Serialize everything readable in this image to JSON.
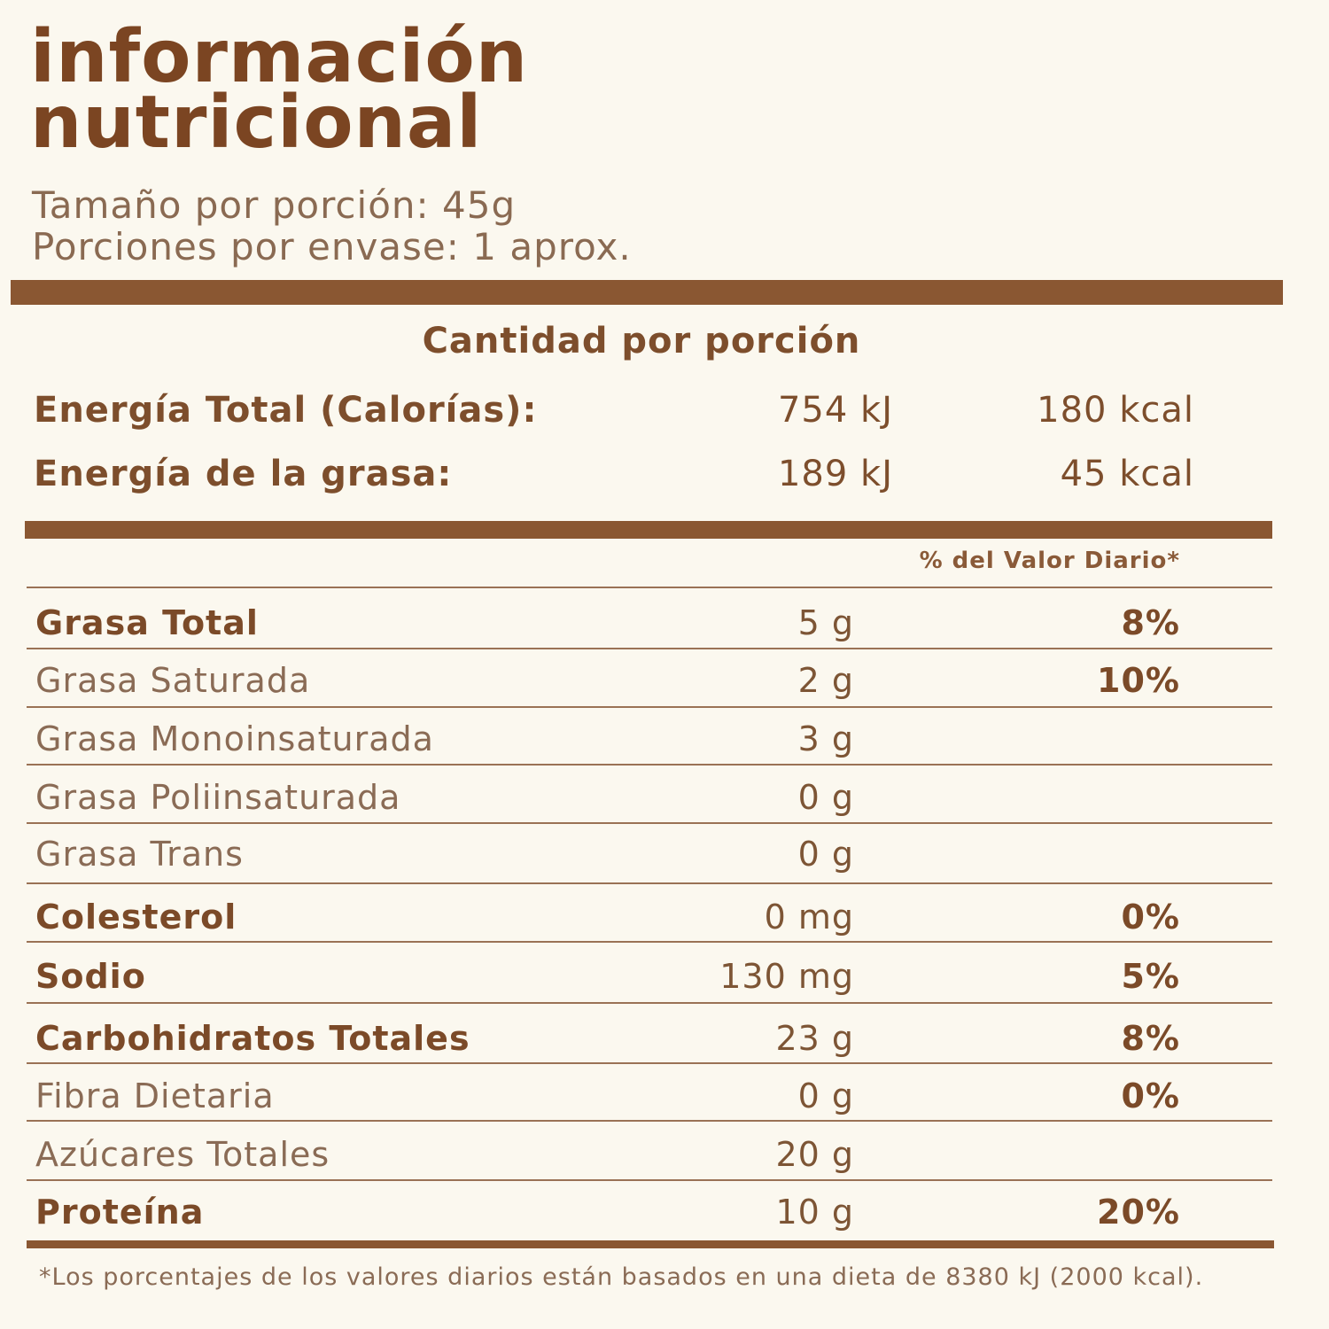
{
  "title_line1": "información",
  "title_line2": "nutricional",
  "serving_size": "Tamaño por porción: 45g",
  "servings_per_container": "Porciones por envase: 1 aprox.",
  "amount_per_serving": "Cantidad por porción",
  "energy": [
    {
      "label": "Energía Total (Calorías):",
      "kj": "754 kJ",
      "kcal": "180 kcal"
    },
    {
      "label": "Energía de la grasa:",
      "kj": "189 kJ",
      "kcal": "45 kcal"
    }
  ],
  "daily_value_header": "% del Valor Diario*",
  "nutrients": [
    {
      "name": "Grasa Total",
      "amount": "5 g",
      "pct": "8%"
    },
    {
      "name": "Grasa Saturada",
      "amount": "2 g",
      "pct": "10%"
    },
    {
      "name": "Grasa Monoinsaturada",
      "amount": "3 g",
      "pct": ""
    },
    {
      "name": "Grasa Poliinsaturada",
      "amount": "0 g",
      "pct": ""
    },
    {
      "name": "Grasa Trans",
      "amount": "0 g",
      "pct": ""
    },
    {
      "name": "Colesterol",
      "amount": "0 mg",
      "pct": "0%"
    },
    {
      "name": "Sodio",
      "amount": "130 mg",
      "pct": "5%"
    },
    {
      "name": "Carbohidratos Totales",
      "amount": "23 g",
      "pct": "8%"
    },
    {
      "name": "Fibra Dietaria",
      "amount": "0 g",
      "pct": "0%"
    },
    {
      "name": "Azúcares Totales",
      "amount": "20 g",
      "pct": ""
    },
    {
      "name": "Proteína",
      "amount": "10 g",
      "pct": "20%"
    }
  ],
  "footnote": "*Los porcentajes de los valores diarios están basados en una dieta de 8380 kJ (2000 kcal).",
  "colors": {
    "brown": "#7b4522",
    "background": "#fbf8ef"
  }
}
